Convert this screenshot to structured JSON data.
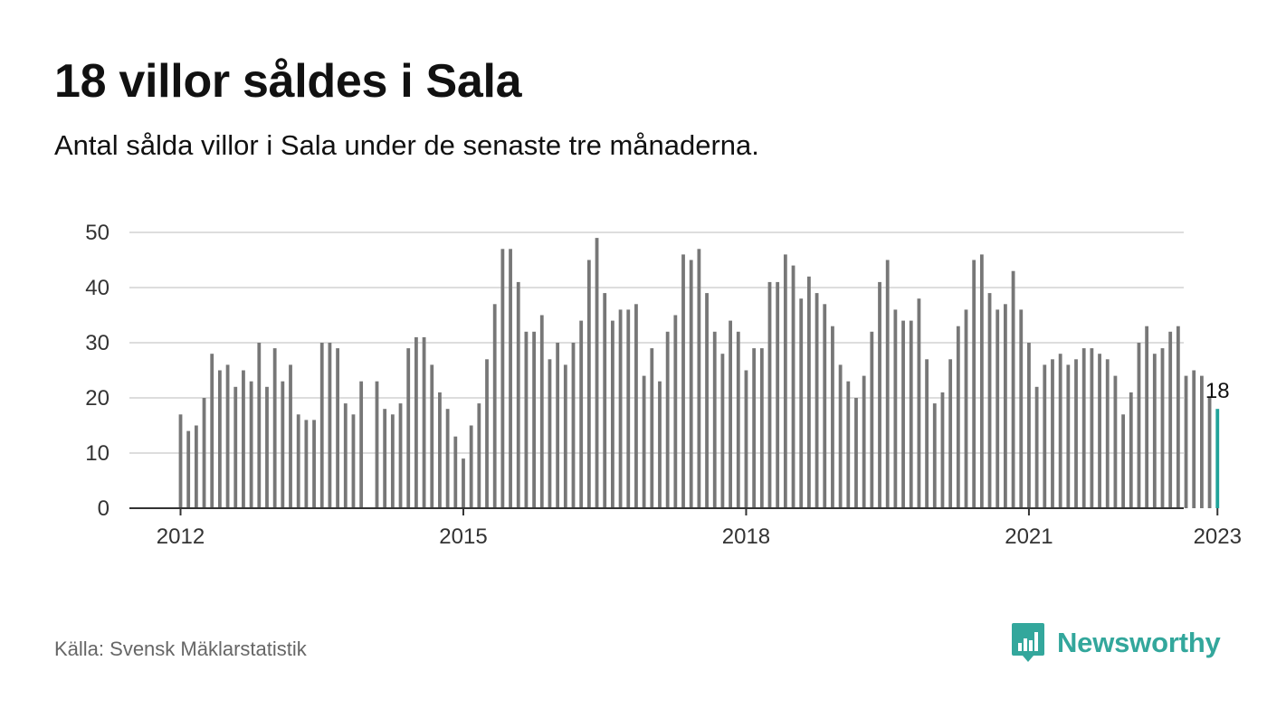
{
  "header": {
    "title": "18 villor såldes i Sala",
    "subtitle": "Antal sålda villor i Sala under de senaste tre månaderna."
  },
  "footer": {
    "source": "Källa: Svensk Mäklarstatistik",
    "brand": "Newsworthy",
    "brand_icon": "bar-chart-speech-bubble-icon"
  },
  "colors": {
    "bar": "#777777",
    "highlight": "#20A39A",
    "grid": "#dddddd",
    "axis": "#333333",
    "brand": "#33A79C"
  },
  "chart_data": {
    "type": "bar",
    "x_start": "2012-01",
    "x_frequency": "monthly",
    "tick_labels": [
      "2012",
      "2015",
      "2018",
      "2021",
      "2023"
    ],
    "tick_months": [
      "2012-01",
      "2015-01",
      "2018-01",
      "2021-01",
      "2023-01"
    ],
    "yticks": [
      0,
      10,
      20,
      30,
      40,
      50
    ],
    "ylim": [
      0,
      50
    ],
    "grid": true,
    "values": [
      17,
      14,
      15,
      20,
      28,
      25,
      26,
      22,
      25,
      23,
      30,
      22,
      29,
      23,
      26,
      17,
      16,
      16,
      30,
      30,
      29,
      19,
      17,
      23,
      null,
      23,
      18,
      17,
      19,
      29,
      31,
      31,
      26,
      21,
      18,
      13,
      9,
      15,
      19,
      27,
      37,
      47,
      47,
      41,
      32,
      32,
      35,
      27,
      30,
      26,
      30,
      34,
      45,
      49,
      39,
      34,
      36,
      36,
      37,
      24,
      29,
      23,
      32,
      35,
      46,
      45,
      47,
      39,
      32,
      28,
      34,
      32,
      25,
      29,
      29,
      41,
      41,
      46,
      44,
      38,
      42,
      39,
      37,
      33,
      26,
      23,
      20,
      24,
      32,
      41,
      45,
      36,
      34,
      34,
      38,
      27,
      19,
      21,
      27,
      33,
      36,
      45,
      46,
      39,
      36,
      37,
      43,
      36,
      30,
      22,
      26,
      27,
      28,
      26,
      27,
      29,
      29,
      28,
      27,
      24,
      17,
      21,
      30,
      33,
      28,
      29,
      32,
      33,
      24,
      25,
      24,
      20,
      18
    ],
    "highlight_index": 132,
    "highlight_label": "18"
  }
}
